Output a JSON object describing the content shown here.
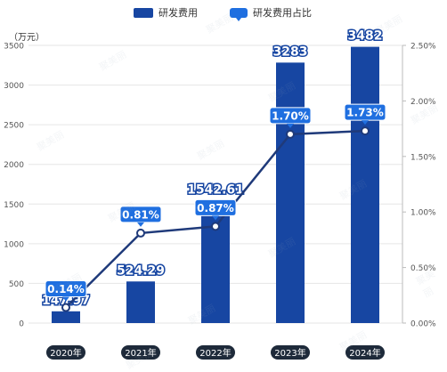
{
  "legend": {
    "bar_label": "研发费用",
    "line_label": "研发费用占比"
  },
  "y_unit": "（万元）",
  "watermark": "聚美丽",
  "colors": {
    "bar": "#1746a2",
    "line": "#1f3a7a",
    "label_bg": "#1f6fe0",
    "tick_bg": "#1e2a3a"
  },
  "chart_data": {
    "type": "bar",
    "categories": [
      "2020年",
      "2021年",
      "2022年",
      "2023年",
      "2024年"
    ],
    "series": [
      {
        "name": "研发费用",
        "values": [
          147.97,
          524.29,
          1542.61,
          3283,
          3482
        ],
        "labels": [
          "147.97",
          "524.29",
          "1542.61",
          "3283",
          "3482"
        ]
      },
      {
        "name": "研发费用占比",
        "type": "line",
        "values": [
          0.14,
          0.81,
          0.87,
          1.7,
          1.73
        ],
        "labels": [
          "0.14%",
          "0.81%",
          "0.87%",
          "1.70%",
          "1.73%"
        ]
      }
    ],
    "y_ticks": [
      "0",
      "500",
      "1000",
      "1500",
      "2000",
      "2500",
      "3000",
      "3500"
    ],
    "y2_ticks": [
      "0.00%",
      "0.50%",
      "1.00%",
      "1.50%",
      "2.00%",
      "2.50%"
    ],
    "ylim": [
      0,
      3500
    ],
    "y2lim": [
      0,
      2.5
    ],
    "grid": true,
    "legend_position": "top"
  }
}
